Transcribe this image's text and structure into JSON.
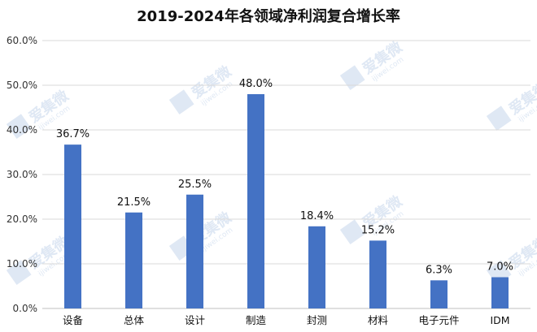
{
  "chart_data": {
    "type": "bar",
    "title": "2019-2024年各领域净利润复合增长率",
    "xlabel": "",
    "ylabel": "",
    "categories": [
      "设备",
      "总体",
      "设计",
      "制造",
      "封测",
      "材料",
      "电子元件",
      "IDM"
    ],
    "values": [
      36.7,
      21.5,
      25.5,
      48.0,
      18.4,
      15.2,
      6.3,
      7.0
    ],
    "value_labels": [
      "36.7%",
      "21.5%",
      "25.5%",
      "48.0%",
      "18.4%",
      "15.2%",
      "6.3%",
      "7.0%"
    ],
    "ylim": [
      0,
      60
    ],
    "yticks": [
      0,
      10,
      20,
      30,
      40,
      50,
      60
    ],
    "ytick_labels": [
      "0.0%",
      "10.0%",
      "20.0%",
      "30.0%",
      "40.0%",
      "50.0%",
      "60.0%"
    ],
    "grid": true,
    "legend": "none",
    "bar_color": "#4472c4"
  },
  "watermark": {
    "text": "爱集微",
    "subtext": "ijiwei.com",
    "color": "#dfe8f4"
  }
}
